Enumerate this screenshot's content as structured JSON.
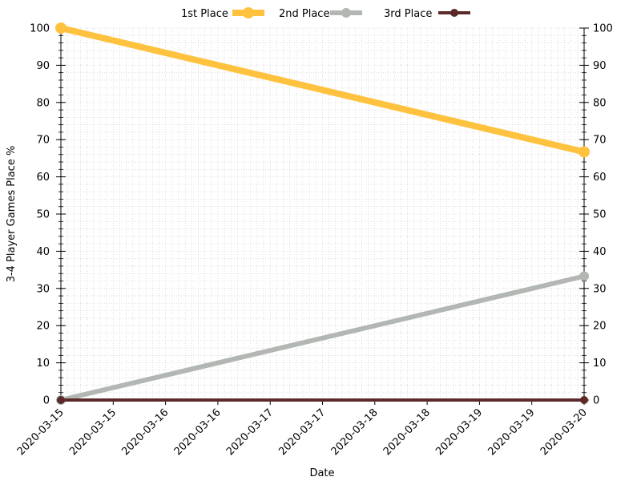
{
  "chart_data": {
    "type": "line",
    "title": "",
    "xlabel": "Date",
    "ylabel": "3-4 Player Games Place %",
    "x_ticks": [
      "2020-03-15",
      "2020-03-15",
      "2020-03-16",
      "2020-03-16",
      "2020-03-17",
      "2020-03-17",
      "2020-03-18",
      "2020-03-18",
      "2020-03-19",
      "2020-03-19",
      "2020-03-20"
    ],
    "x_points": [
      "2020-03-15",
      "2020-03-20"
    ],
    "ylim": [
      0,
      100
    ],
    "y_ticks": [
      0,
      10,
      20,
      30,
      40,
      50,
      60,
      70,
      80,
      90,
      100
    ],
    "grid": true,
    "legend_position": "top-center",
    "series": [
      {
        "name": "1st Place",
        "color": "#ffc23e",
        "values": [
          100,
          66.7
        ]
      },
      {
        "name": "2nd Place",
        "color": "#b3b7b3",
        "values": [
          0,
          33.3
        ]
      },
      {
        "name": "3rd Place",
        "color": "#5c2a2a",
        "values": [
          0,
          0
        ]
      }
    ]
  }
}
